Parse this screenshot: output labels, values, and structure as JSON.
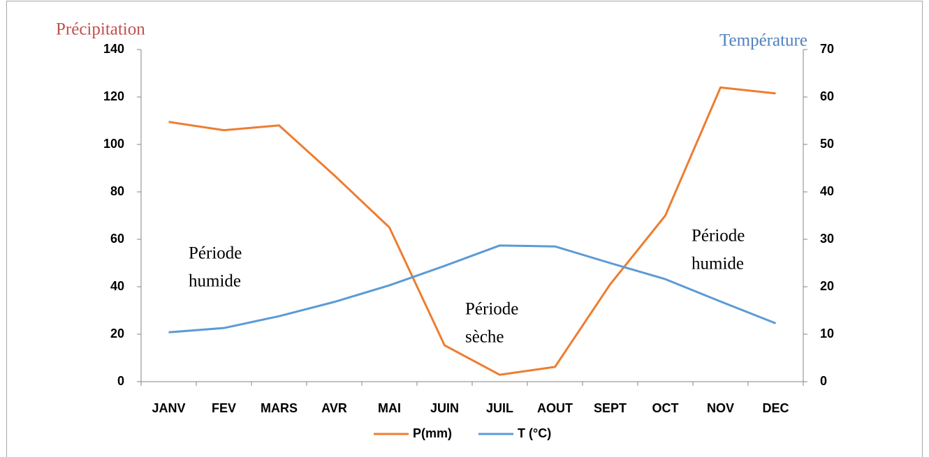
{
  "chart_data": {
    "type": "line",
    "y_axis_label": "Précipitation",
    "y2_axis_label": "Température",
    "categories": [
      "JANV",
      "FEV",
      "MARS",
      "AVR",
      "MAI",
      "JUIN",
      "JUIL",
      "AOUT",
      "SEPT",
      "OCT",
      "NOV",
      "DEC"
    ],
    "series": [
      {
        "name": "P(mm)",
        "color": "#ed7d31",
        "values": [
          109.5,
          106,
          108,
          87,
          65,
          15.3,
          2.9,
          6.2,
          41,
          70,
          124,
          121.5
        ]
      },
      {
        "name": "T (°C)",
        "color": "#5b9bd5",
        "axis": "y2",
        "values": [
          10.4,
          11.3,
          13.8,
          16.8,
          20.3,
          24.4,
          28.7,
          28.5,
          25,
          21.6,
          16.9,
          12.3
        ]
      }
    ],
    "ylim": [
      0,
      140
    ],
    "yticks": [
      0,
      20,
      40,
      60,
      80,
      100,
      120,
      140
    ],
    "y2lim": [
      0,
      70
    ],
    "y2ticks": [
      0,
      10,
      20,
      30,
      40,
      50,
      60,
      70
    ],
    "annotations": [
      {
        "lines": [
          "Période",
          "humide"
        ]
      },
      {
        "lines": [
          "Période",
          "sèche"
        ]
      },
      {
        "lines": [
          "Période",
          "humide"
        ]
      }
    ],
    "grid": false
  }
}
